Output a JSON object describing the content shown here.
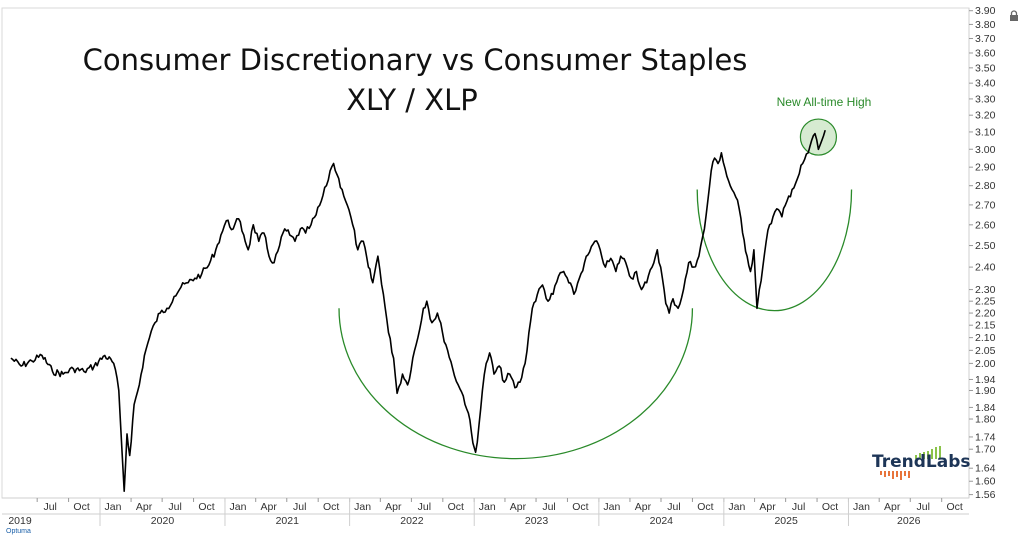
{
  "chart_data": {
    "type": "line",
    "title": "Consumer Discretionary vs Consumer Staples",
    "subtitle": "XLY / XLP",
    "annotation": "New All-time High",
    "y_scale": "log",
    "ylim": [
      1.55,
      3.92
    ],
    "y_ticks": [
      "3.90",
      "3.80",
      "3.70",
      "3.60",
      "3.50",
      "3.40",
      "3.30",
      "3.20",
      "3.10",
      "3.00",
      "2.90",
      "2.80",
      "2.70",
      "2.60",
      "2.50",
      "2.40",
      "2.30",
      "2.25",
      "2.20",
      "2.15",
      "2.10",
      "2.05",
      "2.00",
      "1.94",
      "1.90",
      "1.84",
      "1.80",
      "1.74",
      "1.70",
      "1.64",
      "1.60",
      "1.56"
    ],
    "x_month_labels": [
      "Jul",
      "Oct",
      "Jan",
      "Apr",
      "Jul",
      "Oct",
      "Jan",
      "Apr",
      "Jul",
      "Oct",
      "Jan",
      "Apr",
      "Jul",
      "Oct",
      "Jan",
      "Apr",
      "Jul",
      "Oct",
      "Jan",
      "Apr",
      "Jul",
      "Oct",
      "Jan",
      "Apr",
      "Jul",
      "Oct",
      "Jan",
      "Apr",
      "Jul",
      "Oct"
    ],
    "x_year_labels": [
      "2019",
      "2020",
      "2021",
      "2022",
      "2023",
      "2024",
      "2025",
      "2026"
    ],
    "series": [
      {
        "color": "#000000",
        "points": [
          [
            "2019-04-15",
            2.02
          ],
          [
            "2019-05-15",
            1.99
          ],
          [
            "2019-06-15",
            2.01
          ],
          [
            "2019-07-15",
            2.03
          ],
          [
            "2019-08-15",
            1.97
          ],
          [
            "2019-09-15",
            1.96
          ],
          [
            "2019-10-15",
            1.98
          ],
          [
            "2019-11-15",
            1.97
          ],
          [
            "2019-12-15",
            1.99
          ],
          [
            "2020-01-15",
            2.03
          ],
          [
            "2020-02-10",
            2.0
          ],
          [
            "2020-02-25",
            1.9
          ],
          [
            "2020-03-05",
            1.7
          ],
          [
            "2020-03-12",
            1.57
          ],
          [
            "2020-03-20",
            1.75
          ],
          [
            "2020-03-28",
            1.68
          ],
          [
            "2020-04-10",
            1.85
          ],
          [
            "2020-04-25",
            1.92
          ],
          [
            "2020-05-10",
            2.03
          ],
          [
            "2020-05-25",
            2.1
          ],
          [
            "2020-06-10",
            2.16
          ],
          [
            "2020-06-25",
            2.2
          ],
          [
            "2020-07-15",
            2.22
          ],
          [
            "2020-08-05",
            2.27
          ],
          [
            "2020-08-25",
            2.31
          ],
          [
            "2020-09-15",
            2.33
          ],
          [
            "2020-10-05",
            2.35
          ],
          [
            "2020-10-25",
            2.37
          ],
          [
            "2020-11-15",
            2.41
          ],
          [
            "2020-12-05",
            2.48
          ],
          [
            "2020-12-20",
            2.55
          ],
          [
            "2021-01-05",
            2.62
          ],
          [
            "2021-01-25",
            2.58
          ],
          [
            "2021-02-10",
            2.63
          ],
          [
            "2021-02-25",
            2.55
          ],
          [
            "2021-03-10",
            2.48
          ],
          [
            "2021-03-25",
            2.6
          ],
          [
            "2021-04-10",
            2.52
          ],
          [
            "2021-04-25",
            2.56
          ],
          [
            "2021-05-10",
            2.45
          ],
          [
            "2021-05-25",
            2.42
          ],
          [
            "2021-06-10",
            2.5
          ],
          [
            "2021-06-25",
            2.58
          ],
          [
            "2021-07-10",
            2.55
          ],
          [
            "2021-07-25",
            2.52
          ],
          [
            "2021-08-10",
            2.58
          ],
          [
            "2021-08-25",
            2.56
          ],
          [
            "2021-09-10",
            2.6
          ],
          [
            "2021-09-25",
            2.65
          ],
          [
            "2021-10-10",
            2.72
          ],
          [
            "2021-10-25",
            2.8
          ],
          [
            "2021-11-05",
            2.88
          ],
          [
            "2021-11-15",
            2.92
          ],
          [
            "2021-11-25",
            2.86
          ],
          [
            "2021-12-10",
            2.78
          ],
          [
            "2021-12-25",
            2.7
          ],
          [
            "2022-01-10",
            2.6
          ],
          [
            "2022-01-25",
            2.48
          ],
          [
            "2022-02-10",
            2.52
          ],
          [
            "2022-02-25",
            2.4
          ],
          [
            "2022-03-10",
            2.33
          ],
          [
            "2022-03-25",
            2.45
          ],
          [
            "2022-04-10",
            2.28
          ],
          [
            "2022-04-25",
            2.12
          ],
          [
            "2022-05-10",
            2.02
          ],
          [
            "2022-05-20",
            1.89
          ],
          [
            "2022-06-05",
            1.96
          ],
          [
            "2022-06-20",
            1.92
          ],
          [
            "2022-07-05",
            2.02
          ],
          [
            "2022-07-20",
            2.1
          ],
          [
            "2022-08-05",
            2.22
          ],
          [
            "2022-08-15",
            2.25
          ],
          [
            "2022-08-30",
            2.16
          ],
          [
            "2022-09-15",
            2.2
          ],
          [
            "2022-09-30",
            2.12
          ],
          [
            "2022-10-15",
            2.05
          ],
          [
            "2022-10-30",
            1.98
          ],
          [
            "2022-11-15",
            1.92
          ],
          [
            "2022-11-30",
            1.88
          ],
          [
            "2022-12-15",
            1.82
          ],
          [
            "2022-12-28",
            1.72
          ],
          [
            "2023-01-05",
            1.69
          ],
          [
            "2023-01-15",
            1.78
          ],
          [
            "2023-01-25",
            1.9
          ],
          [
            "2023-02-05",
            2.0
          ],
          [
            "2023-02-15",
            2.04
          ],
          [
            "2023-02-28",
            1.96
          ],
          [
            "2023-03-15",
            1.99
          ],
          [
            "2023-03-30",
            1.93
          ],
          [
            "2023-04-15",
            1.96
          ],
          [
            "2023-04-30",
            1.91
          ],
          [
            "2023-05-15",
            1.93
          ],
          [
            "2023-05-30",
            2.0
          ],
          [
            "2023-06-10",
            2.12
          ],
          [
            "2023-06-20",
            2.22
          ],
          [
            "2023-07-05",
            2.28
          ],
          [
            "2023-07-20",
            2.32
          ],
          [
            "2023-08-05",
            2.25
          ],
          [
            "2023-08-20",
            2.28
          ],
          [
            "2023-09-05",
            2.36
          ],
          [
            "2023-09-20",
            2.38
          ],
          [
            "2023-10-05",
            2.33
          ],
          [
            "2023-10-20",
            2.28
          ],
          [
            "2023-11-05",
            2.35
          ],
          [
            "2023-11-20",
            2.42
          ],
          [
            "2023-12-05",
            2.47
          ],
          [
            "2023-12-20",
            2.52
          ],
          [
            "2024-01-05",
            2.48
          ],
          [
            "2024-01-20",
            2.4
          ],
          [
            "2024-02-05",
            2.44
          ],
          [
            "2024-02-20",
            2.38
          ],
          [
            "2024-03-05",
            2.45
          ],
          [
            "2024-03-20",
            2.42
          ],
          [
            "2024-04-05",
            2.35
          ],
          [
            "2024-04-20",
            2.38
          ],
          [
            "2024-05-05",
            2.3
          ],
          [
            "2024-05-20",
            2.33
          ],
          [
            "2024-06-05",
            2.4
          ],
          [
            "2024-06-20",
            2.48
          ],
          [
            "2024-07-05",
            2.35
          ],
          [
            "2024-07-15",
            2.24
          ],
          [
            "2024-07-25",
            2.2
          ],
          [
            "2024-08-05",
            2.26
          ],
          [
            "2024-08-20",
            2.22
          ],
          [
            "2024-09-05",
            2.3
          ],
          [
            "2024-09-20",
            2.42
          ],
          [
            "2024-10-05",
            2.4
          ],
          [
            "2024-10-20",
            2.45
          ],
          [
            "2024-11-05",
            2.58
          ],
          [
            "2024-11-15",
            2.72
          ],
          [
            "2024-11-25",
            2.88
          ],
          [
            "2024-12-05",
            2.95
          ],
          [
            "2024-12-15",
            2.92
          ],
          [
            "2024-12-25",
            2.98
          ],
          [
            "2025-01-10",
            2.85
          ],
          [
            "2025-01-25",
            2.78
          ],
          [
            "2025-02-05",
            2.74
          ],
          [
            "2025-02-15",
            2.68
          ],
          [
            "2025-02-25",
            2.56
          ],
          [
            "2025-03-10",
            2.45
          ],
          [
            "2025-03-20",
            2.38
          ],
          [
            "2025-03-30",
            2.48
          ],
          [
            "2025-04-08",
            2.22
          ],
          [
            "2025-04-15",
            2.3
          ],
          [
            "2025-04-25",
            2.4
          ],
          [
            "2025-05-05",
            2.52
          ],
          [
            "2025-05-15",
            2.6
          ],
          [
            "2025-05-25",
            2.64
          ],
          [
            "2025-06-05",
            2.68
          ],
          [
            "2025-06-20",
            2.64
          ],
          [
            "2025-07-05",
            2.72
          ],
          [
            "2025-07-20",
            2.78
          ],
          [
            "2025-08-05",
            2.84
          ],
          [
            "2025-08-20",
            2.92
          ],
          [
            "2025-09-05",
            2.98
          ],
          [
            "2025-09-15",
            3.05
          ],
          [
            "2025-09-25",
            3.09
          ],
          [
            "2025-10-05",
            3.0
          ],
          [
            "2025-10-15",
            3.05
          ],
          [
            "2025-10-25",
            3.11
          ]
        ]
      }
    ],
    "arcs": [
      {
        "name": "large-base",
        "start": "2021-12-01",
        "end": "2024-10-01",
        "center_y": 2.22,
        "bottom_y": 1.67
      },
      {
        "name": "small-base",
        "start": "2024-10-15",
        "end": "2026-01-10",
        "center_y": 2.78,
        "bottom_y": 2.21
      }
    ],
    "highlight": {
      "date": "2025-10-05",
      "value": 3.07
    },
    "colors": {
      "line": "#000000",
      "arc": "#2a8a2a",
      "annotation": "#2a8a2a",
      "highlight_fill": "#cfe8c9"
    }
  },
  "logo": {
    "text": "TrendLabs"
  },
  "footer": {
    "source": "Optuma"
  },
  "icons": {
    "lock": "lock-icon"
  }
}
